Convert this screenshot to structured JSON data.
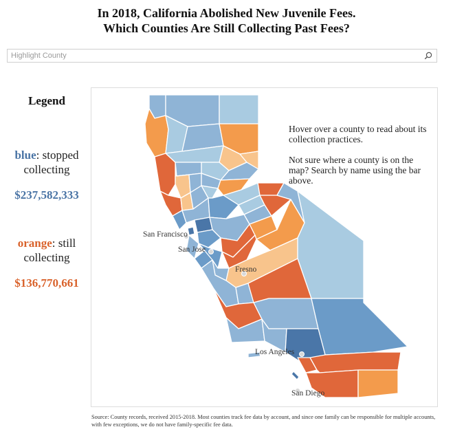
{
  "title": {
    "line1": "In 2018, California Abolished New Juvenile Fees.",
    "line2": "Which Counties Are Still Collecting Past Fees?"
  },
  "search": {
    "placeholder": "Highlight County",
    "icon": "search-icon"
  },
  "legend": {
    "title": "Legend",
    "blue": {
      "keyword": "blue",
      "text": ": stopped",
      "text2": "collecting",
      "amount": "$237,582,333",
      "color": "#4a74a5"
    },
    "orange": {
      "keyword": "orange",
      "text": ": still",
      "text2": "collecting",
      "amount": "$136,770,661",
      "color": "#d9622b"
    }
  },
  "map": {
    "instruction1": "Hover over a county to read about its collection practices.",
    "instruction2": "Not sure where a county is on the map? Search by name using the bar above.",
    "cities": [
      "San Francisco",
      "San Jose",
      "Fresno",
      "Los Angeles",
      "San Diego"
    ],
    "colors": {
      "lightblue": "#a9cbe1",
      "blue": "#8fb4d6",
      "midblue": "#6b9bc8",
      "darkblue": "#4a76a8",
      "lightorange": "#f8c48c",
      "orange": "#f39b4c",
      "darkorange": "#e0673a"
    }
  },
  "source": "Source: County records, received 2015-2018. Most counties track fee data by account, and since one family can be responsible for multiple accounts, with few exceptions, we do not have family-specific fee data."
}
